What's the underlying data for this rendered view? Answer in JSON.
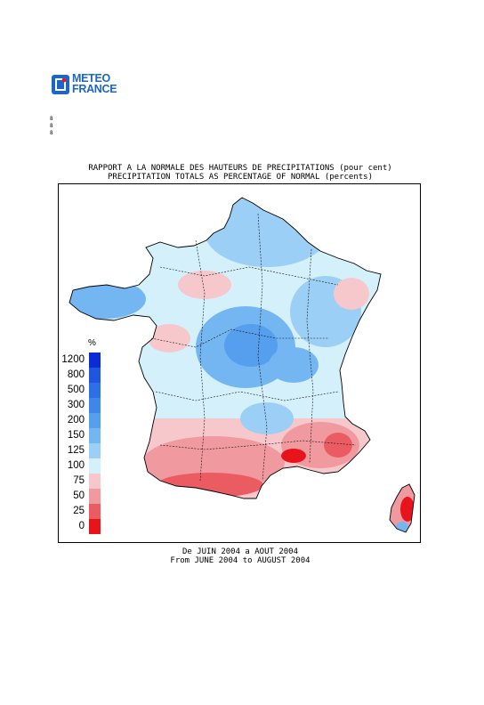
{
  "logo": {
    "line1": "METEO",
    "line2": "FRANCE",
    "color": "#1b67c2"
  },
  "side_marks": [
    "8",
    "8",
    "8"
  ],
  "header": {
    "title_fr": "RAPPORT A LA NORMALE DES HAUTEURS DE PRECIPITATIONS (pour cent)",
    "title_en": "PRECIPITATION TOTALS AS PERCENTAGE OF NORMAL (percents)"
  },
  "legend": {
    "unit": "%",
    "classes": [
      {
        "label": "1200",
        "color": "#0a2bd6"
      },
      {
        "label": "800",
        "color": "#1f55df"
      },
      {
        "label": "500",
        "color": "#2f6fe6"
      },
      {
        "label": "300",
        "color": "#3f86ea"
      },
      {
        "label": "200",
        "color": "#569eee"
      },
      {
        "label": "150",
        "color": "#74b6f2"
      },
      {
        "label": "125",
        "color": "#9ccff5"
      },
      {
        "label": "100",
        "color": "#d4f0fb"
      },
      {
        "label": "75",
        "color": "#f6c8cc"
      },
      {
        "label": "50",
        "color": "#f09aa0"
      },
      {
        "label": "25",
        "color": "#ea5c62"
      },
      {
        "label": "0",
        "color": "#e8141c"
      }
    ]
  },
  "period": {
    "fr": "De JUIN 2004 a AOUT 2004",
    "en": "From JUNE 2004 to AUGUST 2004"
  }
}
